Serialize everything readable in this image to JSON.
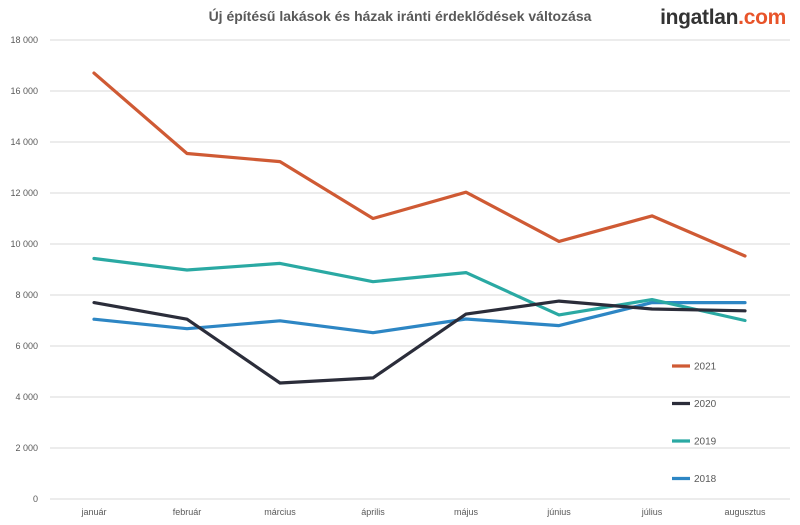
{
  "brand": {
    "name": "ingatlan",
    "suffix": ".com",
    "suffix_color": "#e8542a"
  },
  "chart_data": {
    "type": "line",
    "title": "Új építésű lakások és házak iránti érdeklődések változása",
    "categories": [
      "január",
      "február",
      "március",
      "április",
      "május",
      "június",
      "július",
      "augusztus"
    ],
    "ylim": [
      0,
      18000
    ],
    "yticks": [
      0,
      2000,
      4000,
      6000,
      8000,
      10000,
      12000,
      14000,
      16000,
      18000
    ],
    "ytick_labels": [
      "0",
      "2 000",
      "4 000",
      "6 000",
      "8 000",
      "10 000",
      "12 000",
      "14 000",
      "16 000",
      "18 000"
    ],
    "grid": true,
    "legend_position": "right",
    "series": [
      {
        "name": "2021",
        "color": "#cf5a34",
        "values": [
          16700,
          13550,
          13230,
          11000,
          12030,
          10100,
          11100,
          9530
        ]
      },
      {
        "name": "2020",
        "color": "#2b2d3a",
        "values": [
          7700,
          7050,
          4550,
          4750,
          7250,
          7760,
          7450,
          7380
        ]
      },
      {
        "name": "2019",
        "color": "#2aa9a3",
        "values": [
          9430,
          8980,
          9240,
          8520,
          8880,
          7220,
          7820,
          7000
        ]
      },
      {
        "name": "2018",
        "color": "#2d86c4",
        "values": [
          7050,
          6680,
          6990,
          6520,
          7060,
          6800,
          7700,
          7700
        ]
      }
    ]
  }
}
